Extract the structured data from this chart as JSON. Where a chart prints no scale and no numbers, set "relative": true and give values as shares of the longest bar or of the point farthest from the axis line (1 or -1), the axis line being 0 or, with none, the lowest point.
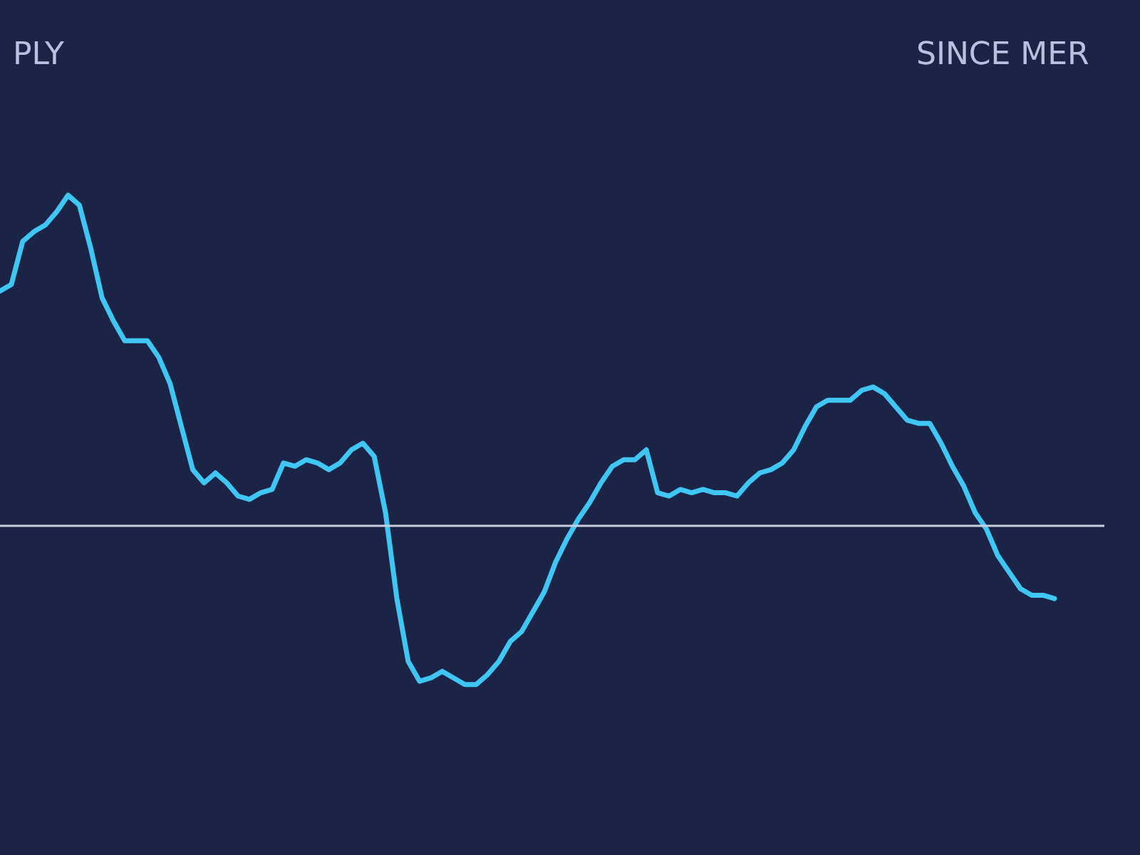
{
  "chart_data": {
    "type": "line",
    "title": "PLY",
    "annotations": [
      "SINCE MER"
    ],
    "relative": true,
    "categories": [
      null,
      null,
      null,
      null,
      null,
      null,
      null,
      null,
      null,
      null,
      null,
      null,
      null,
      null,
      null,
      null,
      null,
      null,
      null,
      null,
      null,
      null,
      null,
      null,
      null,
      null,
      null,
      null,
      null,
      null,
      null,
      null,
      null,
      null,
      null,
      null,
      null,
      null,
      null,
      null,
      null,
      null,
      null,
      null,
      null,
      null,
      null,
      null,
      null,
      null,
      null,
      null,
      null,
      null,
      null,
      null,
      null,
      null,
      null,
      null,
      null,
      null,
      null,
      null,
      null,
      null,
      null,
      null,
      null,
      null,
      null,
      null,
      null,
      null,
      null,
      null,
      null,
      null,
      null,
      null,
      null,
      null,
      null,
      null,
      null,
      null,
      null,
      null,
      null,
      null,
      null,
      null,
      null,
      null
    ],
    "series": [
      {
        "color": "#3fc6f2",
        "values": [
          0.71,
          0.73,
          0.86,
          0.89,
          0.91,
          0.95,
          1,
          0.97,
          0.84,
          0.69,
          0.62,
          0.56,
          0.56,
          0.56,
          0.51,
          0.43,
          0.3,
          0.17,
          0.13,
          0.16,
          0.13,
          0.09,
          0.08,
          0.1,
          0.11,
          0.19,
          0.18,
          0.2,
          0.19,
          0.17,
          0.19,
          0.23,
          0.25,
          0.21,
          0.04,
          -0.22,
          -0.41,
          -0.47,
          -0.46,
          -0.44,
          -0.46,
          -0.48,
          -0.48,
          -0.45,
          -0.41,
          -0.35,
          -0.32,
          -0.26,
          -0.2,
          -0.11,
          -0.04,
          0.02,
          0.07,
          0.13,
          0.18,
          0.2,
          0.2,
          0.23,
          0.1,
          0.09,
          0.11,
          0.1,
          0.11,
          0.1,
          0.1,
          0.09,
          0.13,
          0.16,
          0.17,
          0.19,
          0.23,
          0.3,
          0.36,
          0.38,
          0.38,
          0.38,
          0.41,
          0.42,
          0.4,
          0.36,
          0.32,
          0.31,
          0.31,
          0.25,
          0.18,
          0.12,
          0.04,
          -0.01,
          -0.09,
          -0.14,
          -0.19,
          -0.21,
          -0.21,
          -0.22
        ]
      }
    ],
    "ref_lines": [
      {
        "axis": "y",
        "value": 0,
        "color": "#c8cde0"
      }
    ],
    "grid": false,
    "marker": "none",
    "line_style": "solid"
  }
}
